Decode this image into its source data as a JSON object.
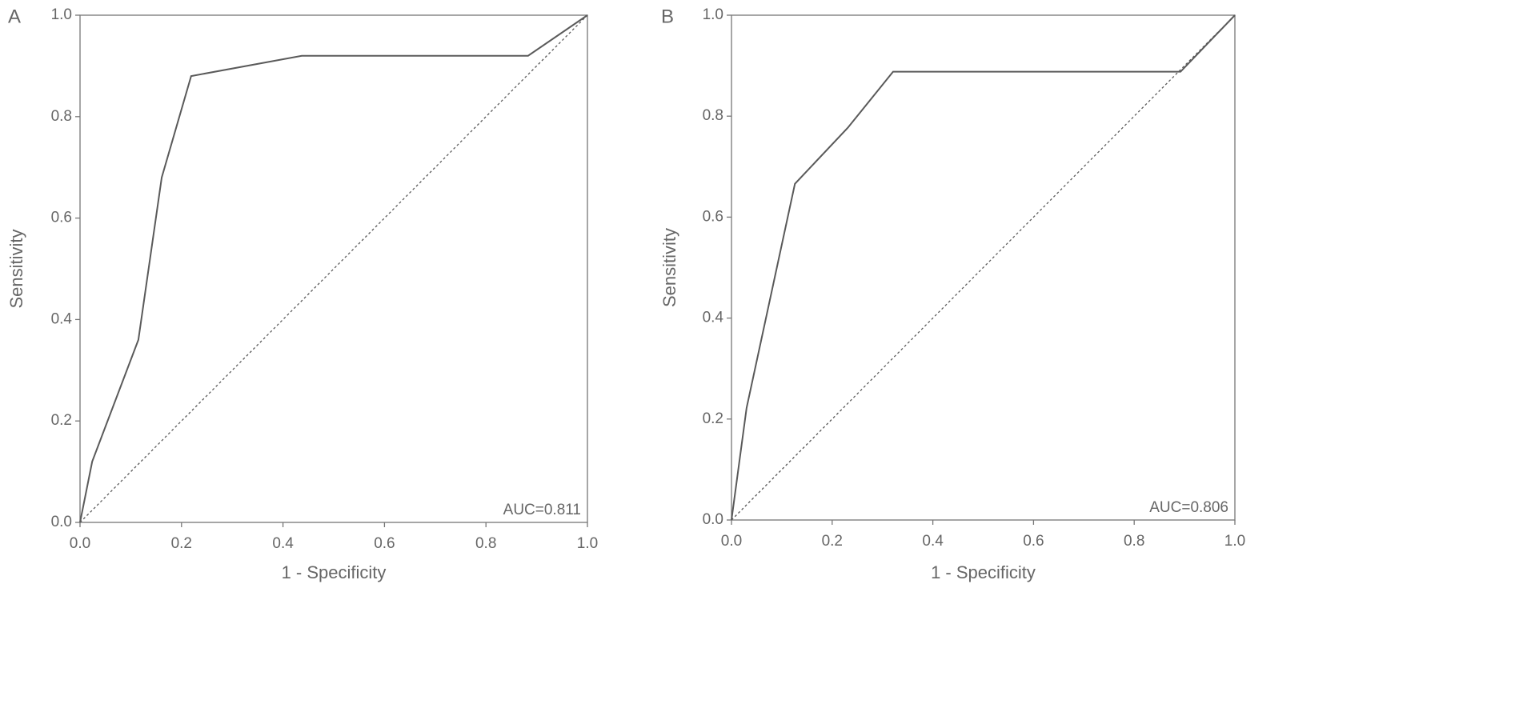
{
  "chart_data": [
    {
      "type": "line",
      "panel_label": "A",
      "xlabel": "1 - Specificity",
      "ylabel": "Sensitivity",
      "annotation": "AUC=0.811",
      "xlim": [
        0,
        1
      ],
      "ylim": [
        0,
        1
      ],
      "xticks": [
        {
          "value": 0,
          "label": "0.0"
        },
        0.2,
        0.4,
        0.6,
        0.8,
        {
          "value": 1,
          "label": "1.0"
        }
      ],
      "yticks": [
        {
          "value": 0,
          "label": "0.0"
        },
        0.2,
        0.4,
        0.6,
        0.8,
        {
          "value": 1,
          "label": "1.0"
        }
      ],
      "series": [
        {
          "color": "#5a5a5a",
          "linestyle": "solid",
          "x": [
            0,
            0.024,
            0.115,
            0.161,
            0.219,
            0.437,
            0.883,
            1
          ],
          "values": [
            0,
            0.12,
            0.36,
            0.68,
            0.88,
            0.92,
            0.92,
            1
          ]
        },
        {
          "color": "#5a5a5a",
          "linestyle": "dashed",
          "x": [
            0,
            1
          ],
          "values": [
            0,
            1
          ]
        }
      ]
    },
    {
      "type": "line",
      "panel_label": "B",
      "xlabel": "1 - Specificity",
      "ylabel": "Sensitivity",
      "annotation": "AUC=0.806",
      "xlim": [
        0,
        1
      ],
      "ylim": [
        0,
        1
      ],
      "xticks": [
        {
          "value": 0,
          "label": "0.0"
        },
        0.2,
        0.4,
        0.6,
        0.8,
        {
          "value": 1,
          "label": "1.0"
        }
      ],
      "yticks": [
        {
          "value": 0,
          "label": "0.0"
        },
        0.2,
        0.4,
        0.6,
        0.8,
        {
          "value": 1,
          "label": "1.0"
        }
      ],
      "series": [
        {
          "color": "#5a5a5a",
          "linestyle": "solid",
          "x": [
            0,
            0.03,
            0.126,
            0.231,
            0.321,
            0.892,
            1
          ],
          "values": [
            0,
            0.222,
            0.666,
            0.777,
            0.888,
            0.888,
            1
          ]
        },
        {
          "color": "#5a5a5a",
          "linestyle": "dashed",
          "x": [
            0,
            1
          ],
          "values": [
            0,
            1
          ]
        }
      ]
    }
  ]
}
